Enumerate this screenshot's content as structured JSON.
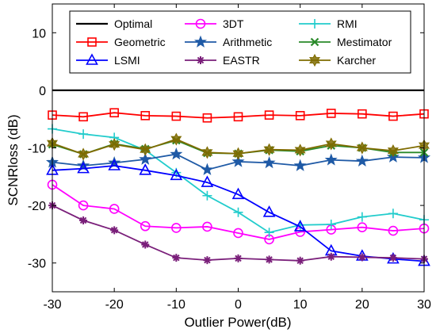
{
  "chart_data": {
    "type": "line",
    "xlabel": "Outlier Power(dB)",
    "ylabel": "SCNRloss (dB)",
    "xlim": [
      -30,
      30
    ],
    "ylim": [
      -35,
      15
    ],
    "xticks": [
      -30,
      -20,
      -10,
      0,
      10,
      20,
      30
    ],
    "yticks": [
      10,
      0,
      -10,
      -20,
      -30
    ],
    "grid": false,
    "legend_position": "top",
    "x": [
      -30,
      -25,
      -20,
      -15,
      -10,
      -5,
      0,
      5,
      10,
      15,
      20,
      25,
      30
    ],
    "series": [
      {
        "name": "Optimal",
        "color": "#000000",
        "marker": "none",
        "values": [
          0,
          0,
          0,
          0,
          0,
          0,
          0,
          0,
          0,
          0,
          0,
          0,
          0
        ]
      },
      {
        "name": "3DT",
        "color": "#ff00ff",
        "marker": "circle",
        "values": [
          -16.4,
          -20.0,
          -20.6,
          -23.6,
          -23.9,
          -23.7,
          -24.8,
          -25.9,
          -24.6,
          -24.2,
          -23.8,
          -24.4,
          -24.0
        ]
      },
      {
        "name": "RMI",
        "color": "#22cccc",
        "marker": "plus",
        "values": [
          -6.7,
          -7.6,
          -8.2,
          -10.4,
          -14.3,
          -18.3,
          -21.2,
          -24.7,
          -23.4,
          -23.3,
          -22.0,
          -21.4,
          -22.5
        ]
      },
      {
        "name": "Geometric",
        "color": "#ff0000",
        "marker": "square",
        "values": [
          -4.3,
          -4.6,
          -3.9,
          -4.4,
          -4.5,
          -4.8,
          -4.6,
          -4.3,
          -4.4,
          -4.0,
          -4.1,
          -4.5,
          -4.1
        ]
      },
      {
        "name": "Arithmetic",
        "color": "#1f5aa6",
        "marker": "star",
        "values": [
          -12.5,
          -13.1,
          -12.6,
          -12.0,
          -11.1,
          -13.8,
          -12.4,
          -12.6,
          -13.1,
          -12.1,
          -12.3,
          -11.6,
          -11.7
        ]
      },
      {
        "name": "Mestimator",
        "color": "#2a8a2a",
        "marker": "x",
        "values": [
          -9.4,
          -11.1,
          -9.3,
          -10.2,
          -8.7,
          -10.9,
          -11.0,
          -10.4,
          -10.6,
          -9.6,
          -10.0,
          -10.8,
          -10.8
        ]
      },
      {
        "name": "LSMI",
        "color": "#0000ff",
        "marker": "triangle",
        "values": [
          -13.9,
          -13.6,
          -13.1,
          -13.9,
          -14.8,
          -16.0,
          -18.1,
          -21.2,
          -23.7,
          -27.9,
          -28.8,
          -29.3,
          -29.7
        ]
      },
      {
        "name": "EASTR",
        "color": "#7a1f7a",
        "marker": "asterisk",
        "values": [
          -20.0,
          -22.6,
          -24.3,
          -26.8,
          -29.1,
          -29.5,
          -29.2,
          -29.4,
          -29.6,
          -28.9,
          -29.0,
          -29.1,
          -29.3
        ]
      },
      {
        "name": "Karcher",
        "color": "#7f6b00",
        "marker": "hexagram",
        "values": [
          -9.2,
          -11.1,
          -9.4,
          -10.3,
          -8.5,
          -10.8,
          -11.0,
          -10.3,
          -10.4,
          -9.3,
          -10.0,
          -10.5,
          -9.6
        ]
      }
    ],
    "legend": [
      [
        "Optimal",
        "3DT",
        "RMI"
      ],
      [
        "Geometric",
        "Arithmetic",
        "Mestimator"
      ],
      [
        "LSMI",
        "EASTR",
        "Karcher"
      ]
    ]
  }
}
